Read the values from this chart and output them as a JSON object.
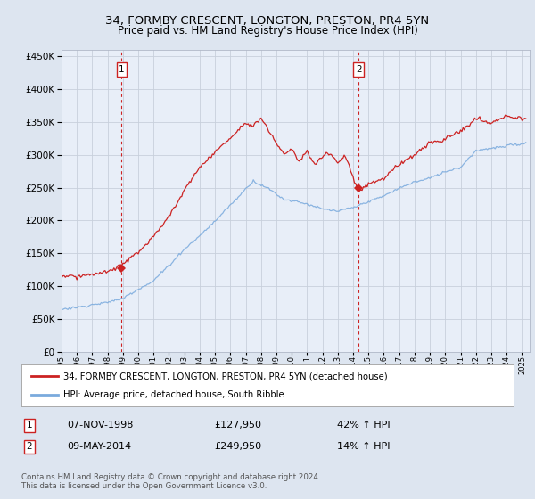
{
  "title": "34, FORMBY CRESCENT, LONGTON, PRESTON, PR4 5YN",
  "subtitle": "Price paid vs. HM Land Registry's House Price Index (HPI)",
  "background_color": "#dde5f0",
  "plot_bg_color": "#e8eef8",
  "sale1_date_num": 1998.92,
  "sale1_price": 127950,
  "sale2_date_num": 2014.36,
  "sale2_price": 249950,
  "legend_line1": "34, FORMBY CRESCENT, LONGTON, PRESTON, PR4 5YN (detached house)",
  "legend_line2": "HPI: Average price, detached house, South Ribble",
  "annotation1_label": "1",
  "annotation1_date": "07-NOV-1998",
  "annotation1_price": "£127,950",
  "annotation1_hpi": "42% ↑ HPI",
  "annotation2_label": "2",
  "annotation2_date": "09-MAY-2014",
  "annotation2_price": "£249,950",
  "annotation2_hpi": "14% ↑ HPI",
  "footer": "Contains HM Land Registry data © Crown copyright and database right 2024.\nThis data is licensed under the Open Government Licence v3.0.",
  "ylim": [
    0,
    460000
  ],
  "yticks": [
    0,
    50000,
    100000,
    150000,
    200000,
    250000,
    300000,
    350000,
    400000,
    450000
  ],
  "red_line_color": "#cc2222",
  "blue_line_color": "#7aaadd",
  "vline_color": "#cc2222",
  "grid_color": "#c8d0dc",
  "xmin": 1995.0,
  "xmax": 2025.5
}
